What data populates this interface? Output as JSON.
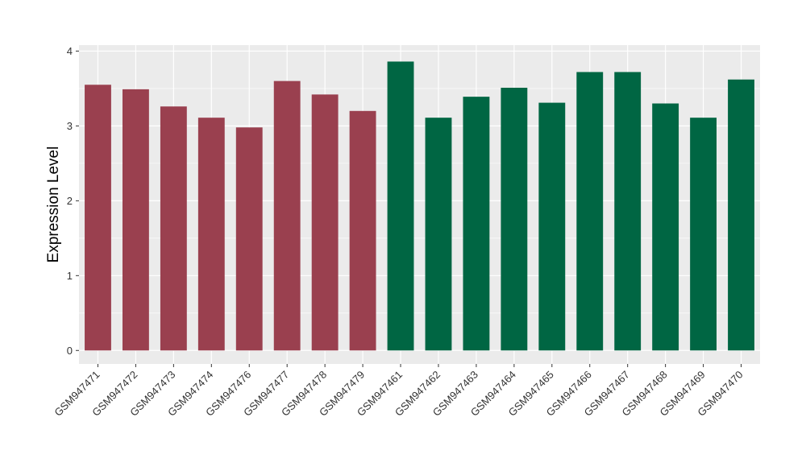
{
  "chart_data": {
    "type": "bar",
    "ylabel": "Expression Level",
    "xlabel": "",
    "ylim": [
      -0.18,
      4.08
    ],
    "yticks": [
      0,
      1,
      2,
      3,
      4
    ],
    "ytick_labels": [
      "0",
      "1",
      "2",
      "3",
      "4"
    ],
    "grid": true,
    "legend": "none",
    "categories": [
      "GSM947471",
      "GSM947472",
      "GSM947473",
      "GSM947474",
      "GSM947476",
      "GSM947477",
      "GSM947478",
      "GSM947479",
      "GSM947461",
      "GSM947462",
      "GSM947463",
      "GSM947464",
      "GSM947465",
      "GSM947466",
      "GSM947467",
      "GSM947468",
      "GSM947469",
      "GSM947470"
    ],
    "values": [
      3.55,
      3.49,
      3.26,
      3.11,
      2.98,
      3.6,
      3.42,
      3.2,
      3.86,
      3.11,
      3.39,
      3.51,
      3.31,
      3.72,
      3.72,
      3.3,
      3.11,
      3.62
    ],
    "bar_colors": [
      "#9a404f",
      "#9a404f",
      "#9a404f",
      "#9a404f",
      "#9a404f",
      "#9a404f",
      "#9a404f",
      "#9a404f",
      "#006643",
      "#006643",
      "#006643",
      "#006643",
      "#006643",
      "#006643",
      "#006643",
      "#006643",
      "#006643",
      "#006643"
    ],
    "panel_background": "#ebebeb",
    "grid_color": "#ffffff"
  }
}
